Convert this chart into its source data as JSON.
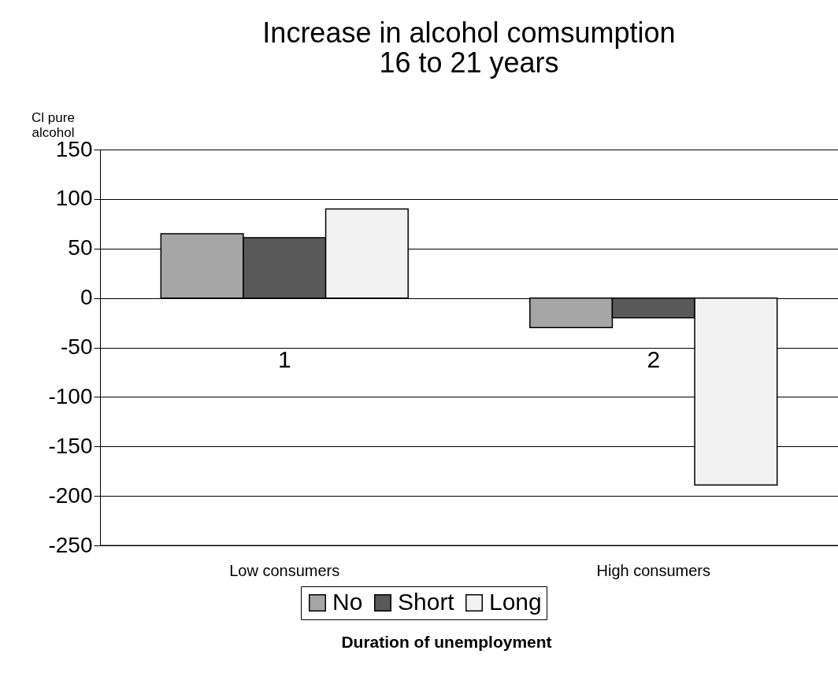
{
  "chart_data": {
    "type": "bar",
    "title": [
      "Increase in alcohol comsumption",
      "16 to 21 years"
    ],
    "ylabel": "Cl pure alcohol",
    "categories": [
      "Low consumers",
      "High consumers"
    ],
    "series": [
      {
        "name": "No",
        "color": "#a6a6a6",
        "values": [
          65,
          -30
        ]
      },
      {
        "name": "Short",
        "color": "#595959",
        "values": [
          61,
          -20
        ]
      },
      {
        "name": "Long",
        "color": "#f2f2f2",
        "values": [
          90,
          -189
        ]
      }
    ],
    "ylim": [
      -250,
      150
    ],
    "yticks": [
      -250,
      -200,
      -150,
      -100,
      -50,
      0,
      50,
      100,
      150
    ],
    "grid": "y",
    "legend": "bottom",
    "annotations": [
      "1",
      "2",
      "Duration of unemployment"
    ]
  }
}
